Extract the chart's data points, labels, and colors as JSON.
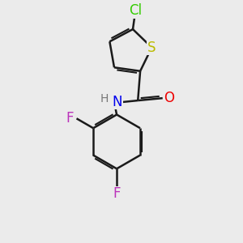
{
  "background_color": "#ebebeb",
  "bond_color": "#1a1a1a",
  "bond_width": 1.8,
  "atom_colors": {
    "Cl": "#33cc00",
    "S": "#bbbb00",
    "N": "#0000ee",
    "O": "#ee0000",
    "F": "#bb33bb",
    "H": "#777777"
  }
}
